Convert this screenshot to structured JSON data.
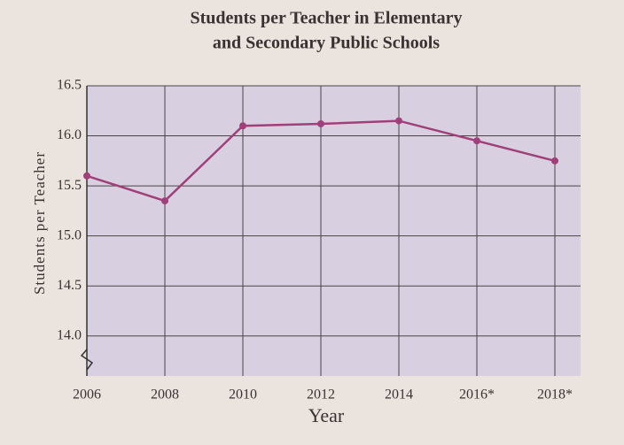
{
  "chart_data": {
    "type": "line",
    "title": [
      "Students per Teacher in Elementary",
      "and Secondary Public Schools"
    ],
    "x_label": "Year",
    "y_label": "Students per Teacher",
    "categories": [
      "2006",
      "2008",
      "2010",
      "2012",
      "2014",
      "2016*",
      "2018*"
    ],
    "values": [
      15.6,
      15.35,
      16.1,
      16.12,
      16.15,
      15.95,
      15.75
    ],
    "color": "#a0407a",
    "ylim": [
      13.6,
      16.5
    ],
    "yticks": [
      {
        "value": 14,
        "label": "14.0"
      },
      14.5,
      {
        "value": 15,
        "label": "15.0"
      },
      15.5,
      {
        "value": 16,
        "label": "16.0"
      },
      16.5
    ],
    "grid": true
  }
}
